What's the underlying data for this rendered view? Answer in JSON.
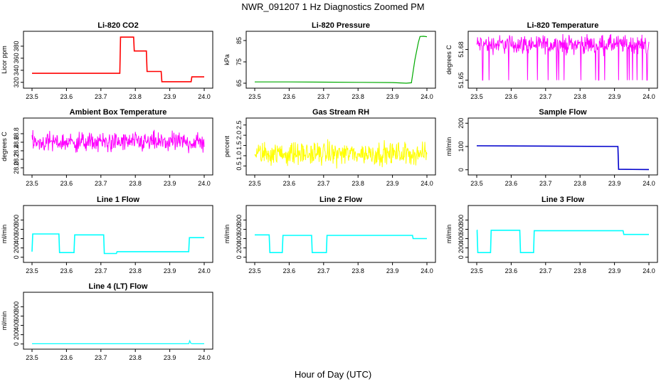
{
  "figure": {
    "title": "NWR_091207  1 Hz Diagnostics Zoomed PM",
    "xlabel": "Hour of Day (UTC)"
  },
  "chart_data": [
    {
      "type": "line",
      "title": "Li-820 CO2",
      "ylabel": "Licor ppm",
      "color": "#ff0000",
      "xlim": [
        23.5,
        24.0
      ],
      "ylim": [
        315,
        400
      ],
      "yticks": [
        "320",
        "340",
        "360",
        "380"
      ],
      "style": "steps",
      "x": [
        23.5,
        23.755,
        23.757,
        23.795,
        23.797,
        23.832,
        23.834,
        23.875,
        23.877,
        23.962,
        23.964,
        24.0
      ],
      "y": [
        335,
        335,
        395,
        395,
        372,
        372,
        338,
        338,
        321,
        321,
        329,
        329
      ]
    },
    {
      "type": "line",
      "title": "Li-820 Pressure",
      "ylabel": "kPa",
      "color": "#00aa00",
      "xlim": [
        23.5,
        24.0
      ],
      "ylim": [
        64,
        88
      ],
      "yticks": [
        "65",
        "75",
        "85"
      ],
      "style": "line",
      "x": [
        23.5,
        23.6,
        23.7,
        23.8,
        23.9,
        23.94,
        23.955,
        23.965,
        23.975,
        23.98,
        23.99,
        24.0
      ],
      "y": [
        65.6,
        65.6,
        65.5,
        65.4,
        65.3,
        65.0,
        65.2,
        76.0,
        84.0,
        86.9,
        87.0,
        86.8
      ]
    },
    {
      "type": "line",
      "title": "Li-820 Temperature",
      "ylabel": "degrees C",
      "color": "#ff00ff",
      "xlim": [
        23.5,
        24.0
      ],
      "ylim": [
        51.645,
        51.695
      ],
      "yticks": [
        "51.65",
        "51.68"
      ],
      "style": "noise",
      "x": [
        23.5,
        24.0
      ],
      "center": 51.685,
      "spread": 0.01,
      "dips_to": 51.65
    },
    {
      "type": "line",
      "title": "Ambient Box Temperature",
      "ylabel": "degrees C",
      "color": "#ff00ff",
      "xlim": [
        23.5,
        24.0
      ],
      "ylim": [
        27.9,
        29.1
      ],
      "yticks": [
        "28.0",
        "28.2",
        "28.4",
        "28.6",
        "28.8"
      ],
      "style": "noise",
      "x": [
        23.5,
        24.0
      ],
      "center": 28.6,
      "spread": 0.25
    },
    {
      "type": "line",
      "title": "Gas Stream RH",
      "ylabel": "percent",
      "color": "#ffff00",
      "xlim": [
        23.5,
        24.0
      ],
      "ylim": [
        0.2,
        2.7
      ],
      "yticks": [
        "0.5",
        "1.0",
        "1.5",
        "2.0",
        "2.5"
      ],
      "style": "noise",
      "x": [
        23.5,
        24.0
      ],
      "center": 1.1,
      "spread": 0.6
    },
    {
      "type": "line",
      "title": "Sample Flow",
      "ylabel": "ml/min",
      "color": "#0000cc",
      "xlim": [
        23.5,
        24.0
      ],
      "ylim": [
        -10,
        210
      ],
      "yticks": [
        "0",
        "100",
        "200"
      ],
      "style": "steps",
      "x": [
        23.5,
        23.91,
        23.912,
        24.0
      ],
      "y": [
        103,
        100,
        2,
        1
      ]
    },
    {
      "type": "line",
      "title": "Line 1 Flow",
      "ylabel": "ml/min",
      "color": "#00ffff",
      "xlim": [
        23.5,
        24.0
      ],
      "ylim": [
        -50,
        1050
      ],
      "yticks": [
        "0",
        "200",
        "400",
        "600",
        "800"
      ],
      "style": "steps",
      "x": [
        23.5,
        23.502,
        23.578,
        23.58,
        23.622,
        23.624,
        23.708,
        23.71,
        23.745,
        23.747,
        23.955,
        23.957,
        24.0
      ],
      "y": [
        120,
        500,
        500,
        100,
        100,
        480,
        480,
        80,
        80,
        120,
        120,
        420,
        420
      ]
    },
    {
      "type": "line",
      "title": "Line 2 Flow",
      "ylabel": "ml/min",
      "color": "#00ffff",
      "xlim": [
        23.5,
        24.0
      ],
      "ylim": [
        -50,
        1050
      ],
      "yticks": [
        "0",
        "200",
        "400",
        "600",
        "800"
      ],
      "style": "steps",
      "x": [
        23.5,
        23.542,
        23.544,
        23.58,
        23.582,
        23.665,
        23.667,
        23.708,
        23.71,
        23.958,
        23.96,
        24.0
      ],
      "y": [
        480,
        480,
        100,
        100,
        470,
        470,
        100,
        100,
        470,
        470,
        400,
        400
      ]
    },
    {
      "type": "line",
      "title": "Line 3 Flow",
      "ylabel": "ml/min",
      "color": "#00ffff",
      "xlim": [
        23.5,
        24.0
      ],
      "ylim": [
        -50,
        1050
      ],
      "yticks": [
        "0",
        "200",
        "400",
        "600",
        "800"
      ],
      "style": "steps",
      "x": [
        23.5,
        23.501,
        23.503,
        23.54,
        23.542,
        23.625,
        23.627,
        23.665,
        23.667,
        23.925,
        23.927,
        24.0
      ],
      "y": [
        580,
        580,
        100,
        100,
        580,
        580,
        100,
        100,
        570,
        570,
        490,
        490
      ]
    },
    {
      "type": "line",
      "title": "Line 4 (LT) Flow",
      "ylabel": "ml/min",
      "color": "#00ffff",
      "xlim": [
        23.5,
        24.0
      ],
      "ylim": [
        -50,
        1050
      ],
      "yticks": [
        "0",
        "200",
        "400",
        "600",
        "800"
      ],
      "style": "line",
      "x": [
        23.5,
        23.7,
        23.955,
        23.958,
        23.961,
        23.965,
        24.0
      ],
      "y": [
        5,
        5,
        5,
        70,
        15,
        5,
        5
      ]
    }
  ],
  "xticks": [
    "23.5",
    "23.6",
    "23.7",
    "23.8",
    "23.9",
    "24.0"
  ]
}
